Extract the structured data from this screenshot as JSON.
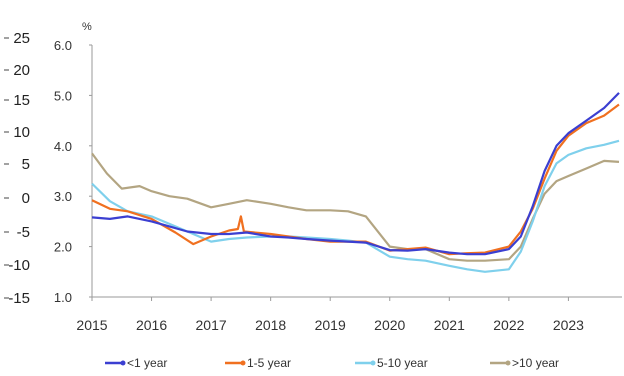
{
  "chart_data": {
    "type": "line",
    "unit": "%",
    "x_ticks": [
      "2015",
      "2016",
      "2017",
      "2018",
      "2019",
      "2020",
      "2021",
      "2022",
      "2023"
    ],
    "y_ticks": [
      "1.0",
      "2.0",
      "3.0",
      "4.0",
      "5.0",
      "6.0"
    ],
    "ylim": [
      1.0,
      6.0
    ],
    "xlim": [
      2015,
      2023.9
    ],
    "secondary_y_ticks": [
      "25",
      "20",
      "15",
      "10",
      "5",
      "0",
      "-5",
      "-10",
      "-15"
    ],
    "grid": false,
    "legend_position": "bottom",
    "series": [
      {
        "name": "<1 year",
        "color": "#3b3fd1",
        "points": [
          [
            2015,
            2.58
          ],
          [
            2015.3,
            2.55
          ],
          [
            2015.6,
            2.6
          ],
          [
            2016,
            2.5
          ],
          [
            2016.3,
            2.4
          ],
          [
            2016.6,
            2.3
          ],
          [
            2017,
            2.25
          ],
          [
            2017.3,
            2.25
          ],
          [
            2017.6,
            2.28
          ],
          [
            2018,
            2.2
          ],
          [
            2018.3,
            2.18
          ],
          [
            2018.6,
            2.15
          ],
          [
            2019,
            2.12
          ],
          [
            2019.3,
            2.1
          ],
          [
            2019.6,
            2.08
          ],
          [
            2020,
            1.93
          ],
          [
            2020.3,
            1.92
          ],
          [
            2020.6,
            1.95
          ],
          [
            2021,
            1.88
          ],
          [
            2021.3,
            1.85
          ],
          [
            2021.6,
            1.85
          ],
          [
            2022,
            1.95
          ],
          [
            2022.2,
            2.2
          ],
          [
            2022.4,
            2.8
          ],
          [
            2022.6,
            3.5
          ],
          [
            2022.8,
            4.0
          ],
          [
            2023,
            4.25
          ],
          [
            2023.3,
            4.5
          ],
          [
            2023.6,
            4.75
          ],
          [
            2023.85,
            5.05
          ]
        ]
      },
      {
        "name": "1-5 year",
        "color": "#f07020",
        "points": [
          [
            2015,
            2.92
          ],
          [
            2015.3,
            2.75
          ],
          [
            2015.6,
            2.7
          ],
          [
            2016,
            2.55
          ],
          [
            2016.4,
            2.28
          ],
          [
            2016.7,
            2.05
          ],
          [
            2017,
            2.2
          ],
          [
            2017.3,
            2.32
          ],
          [
            2017.45,
            2.35
          ],
          [
            2017.5,
            2.6
          ],
          [
            2017.55,
            2.3
          ],
          [
            2018,
            2.25
          ],
          [
            2018.3,
            2.2
          ],
          [
            2018.6,
            2.15
          ],
          [
            2019,
            2.1
          ],
          [
            2019.3,
            2.1
          ],
          [
            2019.6,
            2.1
          ],
          [
            2020,
            1.92
          ],
          [
            2020.3,
            1.95
          ],
          [
            2020.6,
            1.98
          ],
          [
            2021,
            1.85
          ],
          [
            2021.3,
            1.87
          ],
          [
            2021.6,
            1.88
          ],
          [
            2022,
            2.0
          ],
          [
            2022.2,
            2.3
          ],
          [
            2022.4,
            2.75
          ],
          [
            2022.6,
            3.35
          ],
          [
            2022.8,
            3.9
          ],
          [
            2023,
            4.2
          ],
          [
            2023.3,
            4.45
          ],
          [
            2023.6,
            4.6
          ],
          [
            2023.85,
            4.82
          ]
        ]
      },
      {
        "name": "5-10 year",
        "color": "#7fd0ec",
        "points": [
          [
            2015,
            3.25
          ],
          [
            2015.3,
            2.9
          ],
          [
            2015.6,
            2.7
          ],
          [
            2016,
            2.6
          ],
          [
            2016.4,
            2.4
          ],
          [
            2016.7,
            2.25
          ],
          [
            2017,
            2.1
          ],
          [
            2017.3,
            2.15
          ],
          [
            2017.6,
            2.18
          ],
          [
            2018,
            2.2
          ],
          [
            2018.3,
            2.2
          ],
          [
            2018.6,
            2.18
          ],
          [
            2019,
            2.15
          ],
          [
            2019.3,
            2.12
          ],
          [
            2019.6,
            2.08
          ],
          [
            2020,
            1.8
          ],
          [
            2020.3,
            1.75
          ],
          [
            2020.6,
            1.72
          ],
          [
            2021,
            1.62
          ],
          [
            2021.3,
            1.55
          ],
          [
            2021.6,
            1.5
          ],
          [
            2022,
            1.55
          ],
          [
            2022.2,
            1.9
          ],
          [
            2022.4,
            2.5
          ],
          [
            2022.6,
            3.2
          ],
          [
            2022.8,
            3.65
          ],
          [
            2023,
            3.82
          ],
          [
            2023.3,
            3.95
          ],
          [
            2023.6,
            4.02
          ],
          [
            2023.85,
            4.1
          ]
        ]
      },
      {
        "name": ">10 year",
        "color": "#b3a582",
        "points": [
          [
            2015,
            3.85
          ],
          [
            2015.25,
            3.45
          ],
          [
            2015.5,
            3.15
          ],
          [
            2015.8,
            3.2
          ],
          [
            2016,
            3.1
          ],
          [
            2016.3,
            3.0
          ],
          [
            2016.6,
            2.95
          ],
          [
            2017,
            2.78
          ],
          [
            2017.3,
            2.85
          ],
          [
            2017.6,
            2.92
          ],
          [
            2018,
            2.85
          ],
          [
            2018.3,
            2.78
          ],
          [
            2018.6,
            2.72
          ],
          [
            2019,
            2.72
          ],
          [
            2019.3,
            2.7
          ],
          [
            2019.6,
            2.6
          ],
          [
            2020,
            2.0
          ],
          [
            2020.3,
            1.95
          ],
          [
            2020.6,
            1.95
          ],
          [
            2021,
            1.75
          ],
          [
            2021.3,
            1.72
          ],
          [
            2021.6,
            1.72
          ],
          [
            2022,
            1.75
          ],
          [
            2022.2,
            2.0
          ],
          [
            2022.4,
            2.55
          ],
          [
            2022.6,
            3.05
          ],
          [
            2022.8,
            3.3
          ],
          [
            2023,
            3.4
          ],
          [
            2023.3,
            3.55
          ],
          [
            2023.6,
            3.7
          ],
          [
            2023.85,
            3.68
          ]
        ]
      }
    ]
  }
}
